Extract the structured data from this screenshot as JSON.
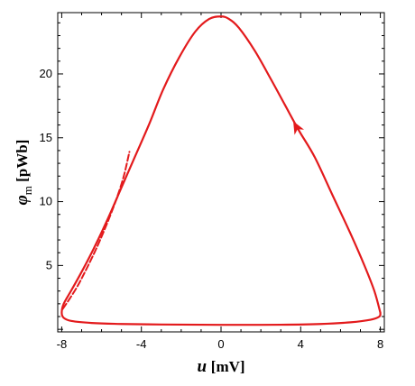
{
  "chart_data": {
    "type": "line",
    "title": "",
    "xlabel": {
      "symbol": "u",
      "unit": "[mV]"
    },
    "ylabel": {
      "symbol": "φ",
      "subscript": "m",
      "unit": "[pWb]"
    },
    "xlim": [
      -8.2,
      8.2
    ],
    "ylim": [
      -0.2,
      24.8
    ],
    "x_ticks": [
      -8,
      -4,
      0,
      4,
      8
    ],
    "x_tick_labels": [
      "-8",
      "-4",
      "0",
      "4",
      "8"
    ],
    "y_ticks": [
      5,
      10,
      15,
      20
    ],
    "y_tick_labels": [
      "5",
      "10",
      "15",
      "20"
    ],
    "grid": false,
    "legend": "none",
    "color": "#e31a1c",
    "series": [
      {
        "style": "solid",
        "points": [
          [
            8.0,
            1.3
          ],
          [
            7.7,
            3.0
          ],
          [
            7.2,
            5.0
          ],
          [
            6.5,
            7.5
          ],
          [
            5.6,
            10.5
          ],
          [
            4.7,
            13.5
          ],
          [
            3.9,
            15.6
          ],
          [
            3.2,
            17.6
          ],
          [
            2.5,
            19.6
          ],
          [
            1.7,
            21.8
          ],
          [
            0.9,
            23.6
          ],
          [
            0.4,
            24.3
          ],
          [
            0.0,
            24.5
          ],
          [
            -0.6,
            24.3
          ],
          [
            -1.3,
            23.3
          ],
          [
            -2.1,
            21.3
          ],
          [
            -2.9,
            18.8
          ],
          [
            -3.6,
            16.1
          ],
          [
            -4.3,
            13.6
          ],
          [
            -5.0,
            11.1
          ],
          [
            -5.7,
            8.6
          ],
          [
            -6.4,
            6.3
          ],
          [
            -7.0,
            4.5
          ],
          [
            -7.5,
            3.1
          ],
          [
            -7.9,
            2.0
          ],
          [
            -8.0,
            1.3
          ],
          [
            -7.9,
            0.9
          ],
          [
            -7.5,
            0.65
          ],
          [
            -6.5,
            0.5
          ],
          [
            -5.0,
            0.42
          ],
          [
            -3.0,
            0.38
          ],
          [
            -1.0,
            0.36
          ],
          [
            1.0,
            0.35
          ],
          [
            3.0,
            0.36
          ],
          [
            5.0,
            0.42
          ],
          [
            6.5,
            0.55
          ],
          [
            7.5,
            0.75
          ],
          [
            7.95,
            1.0
          ],
          [
            8.0,
            1.3
          ]
        ]
      },
      {
        "style": "dashed",
        "points": [
          [
            -7.95,
            1.6
          ],
          [
            -7.6,
            2.4
          ],
          [
            -7.2,
            3.4
          ],
          [
            -6.8,
            4.6
          ],
          [
            -6.3,
            6.2
          ],
          [
            -5.8,
            8.0
          ],
          [
            -5.3,
            10.0
          ],
          [
            -4.9,
            11.9
          ],
          [
            -4.6,
            13.9
          ]
        ]
      }
    ],
    "annotations": [
      {
        "type": "arrow",
        "x": 3.8,
        "y": 15.8,
        "direction": "up-left"
      }
    ]
  }
}
